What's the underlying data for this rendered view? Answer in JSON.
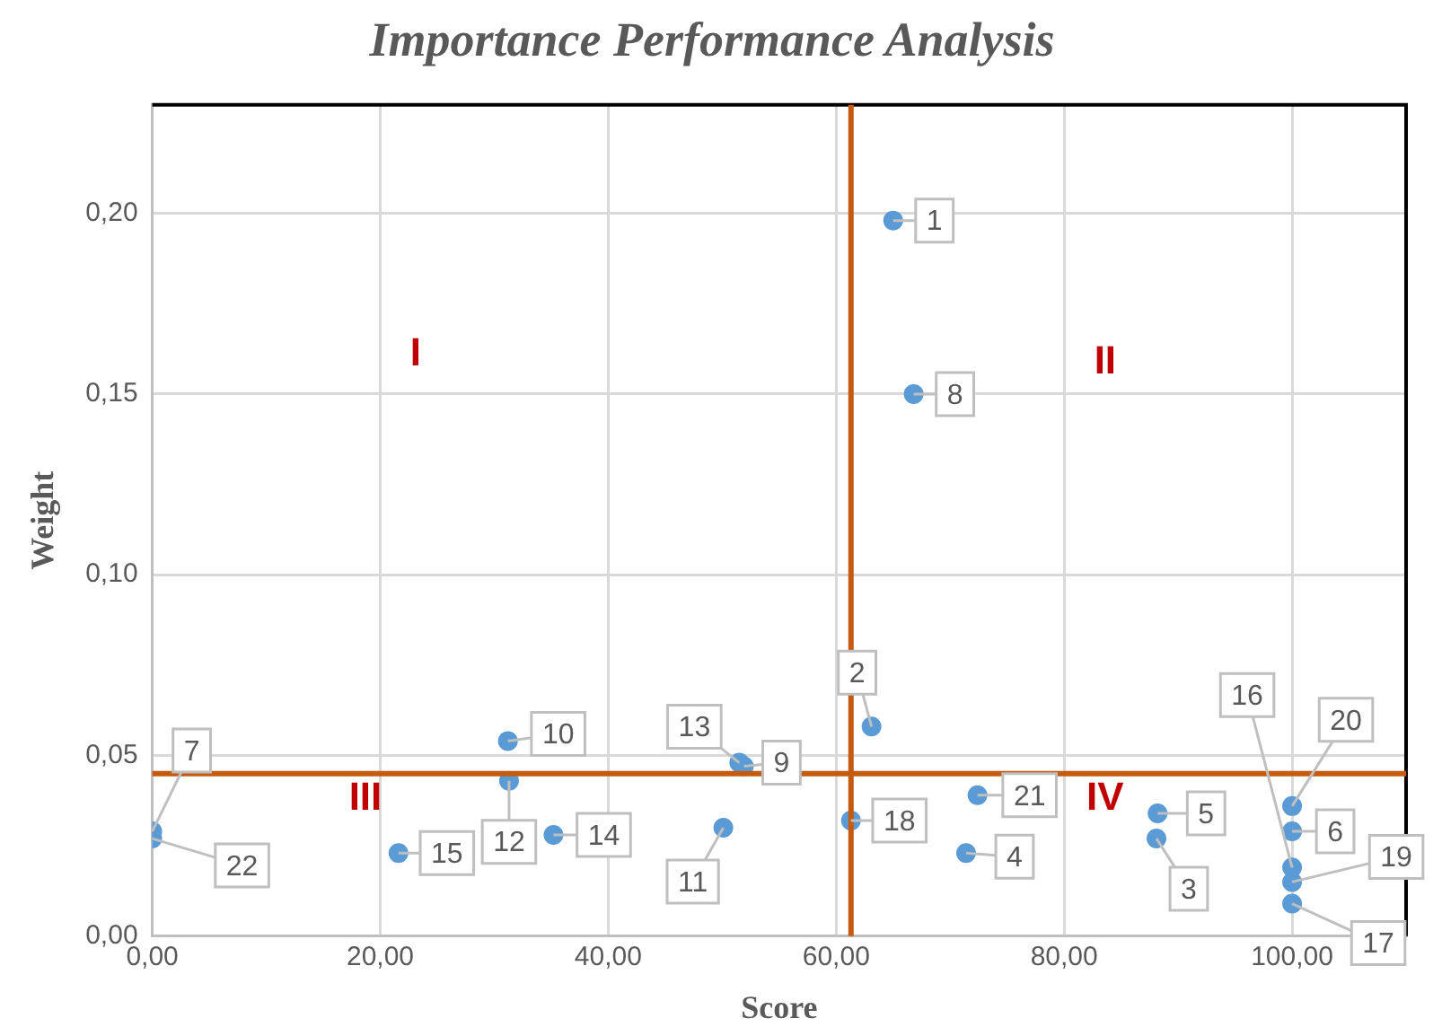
{
  "chart_data": {
    "type": "scatter",
    "title": "Importance Performance Analysis",
    "xlabel": "Score",
    "ylabel": "Weight",
    "series": [
      {
        "name": "1",
        "color": "#5b9bd5",
        "x": [
          65.0
        ],
        "values": [
          0.198
        ]
      },
      {
        "name": "2",
        "color": "#5b9bd5",
        "x": [
          63.1
        ],
        "values": [
          0.058
        ]
      },
      {
        "name": "3",
        "color": "#5b9bd5",
        "x": [
          88.1
        ],
        "values": [
          0.027
        ]
      },
      {
        "name": "4",
        "color": "#5b9bd5",
        "x": [
          71.4
        ],
        "values": [
          0.023
        ]
      },
      {
        "name": "5",
        "color": "#5b9bd5",
        "x": [
          88.2
        ],
        "values": [
          0.034
        ]
      },
      {
        "name": "6",
        "color": "#5b9bd5",
        "x": [
          100
        ],
        "values": [
          0.029
        ]
      },
      {
        "name": "7",
        "color": "#5b9bd5",
        "x": [
          0
        ],
        "values": [
          0.029
        ]
      },
      {
        "name": "8",
        "color": "#5b9bd5",
        "x": [
          66.8
        ],
        "values": [
          0.15
        ]
      },
      {
        "name": "9",
        "color": "#5b9bd5",
        "x": [
          51.9
        ],
        "values": [
          0.047
        ]
      },
      {
        "name": "10",
        "color": "#5b9bd5",
        "x": [
          31.2
        ],
        "values": [
          0.054
        ]
      },
      {
        "name": "11",
        "color": "#5b9bd5",
        "x": [
          50.1
        ],
        "values": [
          0.03
        ]
      },
      {
        "name": "12",
        "color": "#5b9bd5",
        "x": [
          31.3
        ],
        "values": [
          0.043
        ]
      },
      {
        "name": "13",
        "color": "#5b9bd5",
        "x": [
          51.5
        ],
        "values": [
          0.048
        ]
      },
      {
        "name": "14",
        "color": "#5b9bd5",
        "x": [
          35.2
        ],
        "values": [
          0.028
        ]
      },
      {
        "name": "15",
        "color": "#5b9bd5",
        "x": [
          21.6
        ],
        "values": [
          0.023
        ]
      },
      {
        "name": "16",
        "color": "#5b9bd5",
        "x": [
          100
        ],
        "values": [
          0.019
        ]
      },
      {
        "name": "17",
        "color": "#5b9bd5",
        "x": [
          100
        ],
        "values": [
          0.009
        ]
      },
      {
        "name": "18",
        "color": "#5b9bd5",
        "x": [
          61.3
        ],
        "values": [
          0.032
        ]
      },
      {
        "name": "19",
        "color": "#5b9bd5",
        "x": [
          100
        ],
        "values": [
          0.015
        ]
      },
      {
        "name": "20",
        "color": "#5b9bd5",
        "x": [
          100
        ],
        "values": [
          0.036
        ]
      },
      {
        "name": "21",
        "color": "#5b9bd5",
        "x": [
          72.4
        ],
        "values": [
          0.039
        ]
      },
      {
        "name": "22",
        "color": "#5b9bd5",
        "x": [
          0
        ],
        "values": [
          0.027
        ]
      }
    ],
    "xlim": [
      0,
      110
    ],
    "ylim": [
      0,
      0.23
    ],
    "xticks": [
      {
        "value": 0,
        "label": "0,00"
      },
      {
        "value": 20,
        "label": "20,00"
      },
      {
        "value": 40,
        "label": "40,00"
      },
      {
        "value": 60,
        "label": "60,00"
      },
      {
        "value": 80,
        "label": "80,00"
      },
      {
        "value": 100,
        "label": "100,00"
      }
    ],
    "yticks": [
      {
        "value": 0,
        "label": "0,00"
      },
      {
        "value": 0.05,
        "label": "0,05"
      },
      {
        "value": 0.1,
        "label": "0,10"
      },
      {
        "value": 0.15,
        "label": "0,15"
      },
      {
        "value": 0.2,
        "label": "0,20"
      }
    ],
    "grid": true,
    "marker": "circle",
    "ref_lines": [
      {
        "axis": "x",
        "value": 61.3,
        "color": "#c55a11"
      },
      {
        "axis": "y",
        "value": 0.045,
        "color": "#c55a11"
      }
    ],
    "annotations": [
      "I",
      "II",
      "III",
      "IV"
    ]
  }
}
